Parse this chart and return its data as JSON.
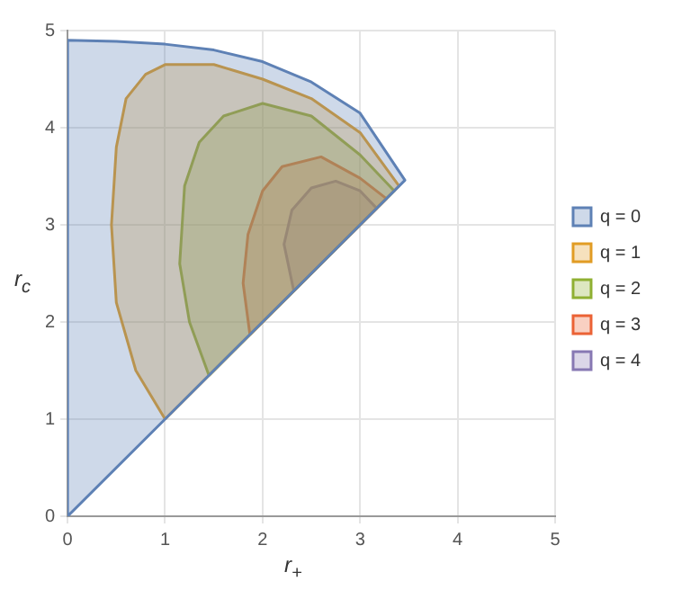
{
  "chart_data": {
    "type": "area",
    "xlabel": "r$_{+}$",
    "ylabel": "r$_{c}$",
    "xlim": [
      0,
      5
    ],
    "ylim": [
      0,
      5
    ],
    "xticks": [
      0,
      1,
      2,
      3,
      4,
      5
    ],
    "yticks": [
      0,
      1,
      2,
      3,
      4,
      5
    ],
    "grid": true,
    "legend": "right",
    "marker": "none",
    "series": [
      {
        "name": "q = 0",
        "color": "#5e81b5",
        "x": [
          0,
          0,
          0.5,
          1,
          1.5,
          2,
          2.5,
          3,
          3.46,
          2,
          1,
          0
        ],
        "values": [
          0,
          4.9,
          4.89,
          4.86,
          4.8,
          4.68,
          4.47,
          4.15,
          3.46,
          2,
          1,
          0
        ]
      },
      {
        "name": "q = 1",
        "color": "#e19c24",
        "x": [
          1,
          0.7,
          0.5,
          0.45,
          0.5,
          0.6,
          0.8,
          1,
          1.5,
          2,
          2.5,
          3,
          3.4,
          2,
          1
        ],
        "values": [
          1,
          1.5,
          2.2,
          3,
          3.8,
          4.3,
          4.55,
          4.65,
          4.65,
          4.5,
          4.3,
          3.95,
          3.4,
          2,
          1
        ]
      },
      {
        "name": "q = 2",
        "color": "#8fb032",
        "x": [
          1.45,
          1.25,
          1.15,
          1.2,
          1.35,
          1.6,
          2,
          2.5,
          3,
          3.35,
          2,
          1.45
        ],
        "values": [
          1.45,
          2,
          2.6,
          3.4,
          3.85,
          4.12,
          4.25,
          4.12,
          3.72,
          3.35,
          2,
          1.45
        ]
      },
      {
        "name": "q = 3",
        "color": "#eb6235",
        "x": [
          1.87,
          1.8,
          1.85,
          2,
          2.2,
          2.6,
          3,
          3.27,
          2.5,
          1.87
        ],
        "values": [
          1.87,
          2.4,
          2.9,
          3.35,
          3.6,
          3.7,
          3.48,
          3.27,
          2.5,
          1.87
        ]
      },
      {
        "name": "q = 4",
        "color": "#8778b3",
        "x": [
          2.32,
          2.22,
          2.3,
          2.5,
          2.75,
          3,
          3.17,
          2.32
        ],
        "values": [
          2.32,
          2.8,
          3.15,
          3.38,
          3.45,
          3.35,
          3.17,
          2.32
        ]
      }
    ]
  }
}
